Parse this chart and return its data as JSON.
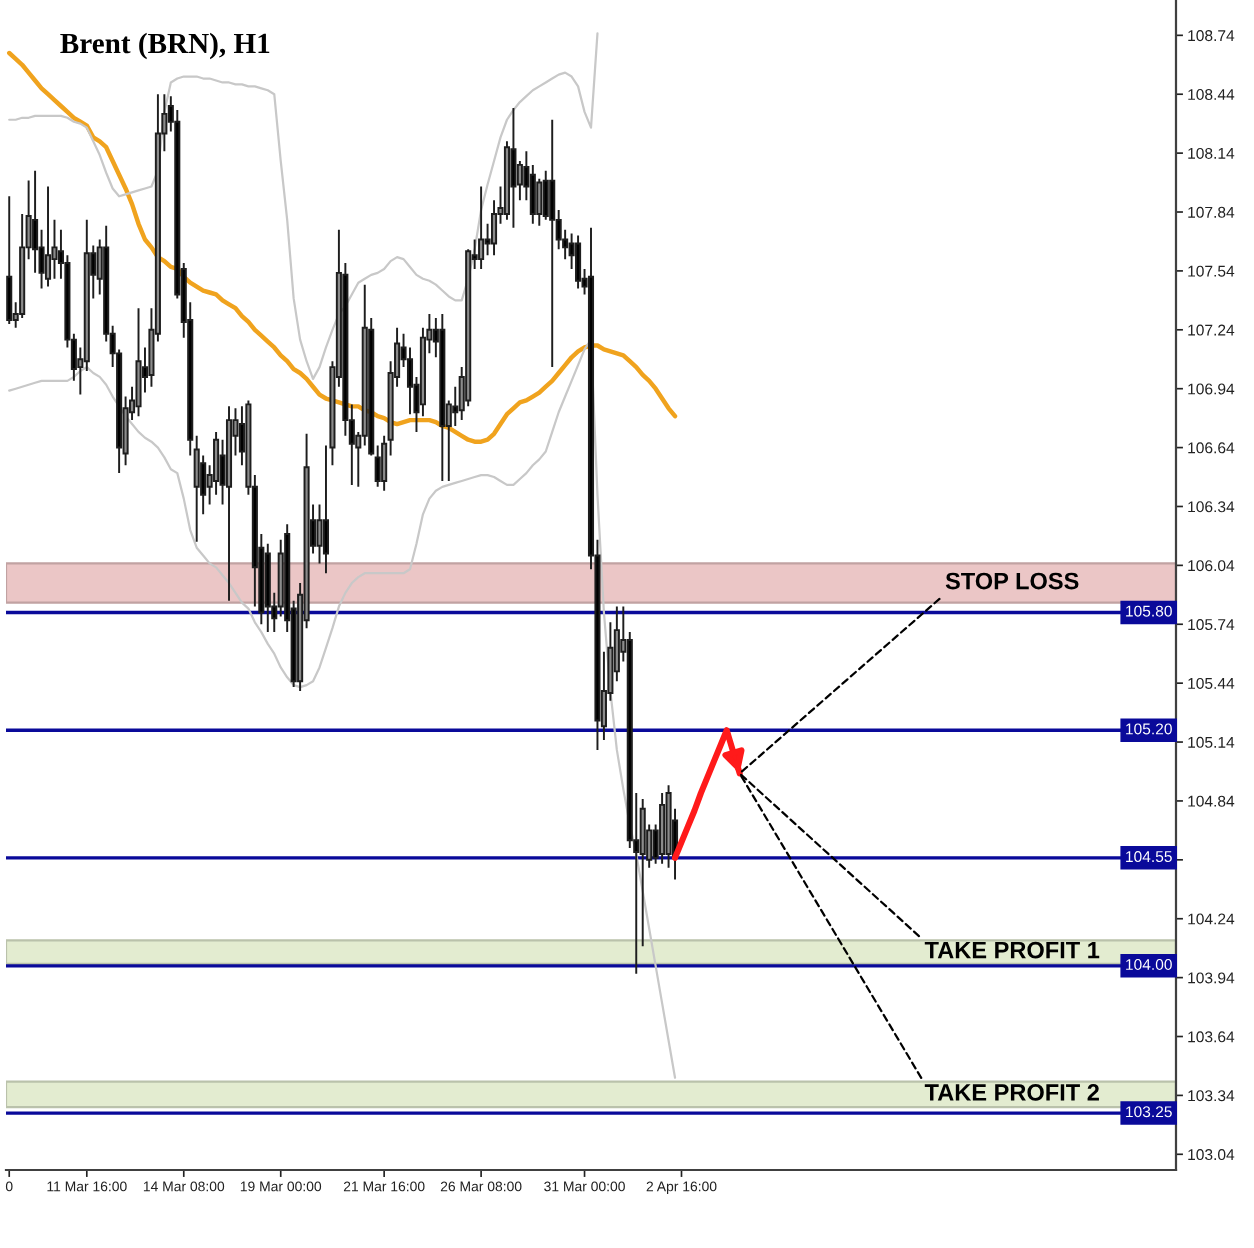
{
  "chart_data": {
    "type": "candlestick",
    "title": "Brent (BRN), H1",
    "categories": [
      "0",
      null,
      null,
      null,
      null,
      null,
      null,
      null,
      null,
      null,
      null,
      null,
      "11 Mar 16:00",
      null,
      null,
      null,
      null,
      null,
      null,
      null,
      null,
      null,
      null,
      null,
      null,
      null,
      null,
      "14 Mar 08:00",
      null,
      null,
      null,
      null,
      null,
      null,
      null,
      null,
      null,
      null,
      null,
      null,
      null,
      null,
      "19 Mar 00:00",
      null,
      null,
      null,
      null,
      null,
      null,
      null,
      null,
      null,
      null,
      null,
      null,
      null,
      null,
      null,
      "21 Mar 16:00",
      null,
      null,
      null,
      null,
      null,
      null,
      null,
      null,
      null,
      null,
      null,
      null,
      null,
      null,
      "26 Mar 08:00",
      null,
      null,
      null,
      null,
      null,
      null,
      null,
      null,
      null,
      null,
      null,
      null,
      null,
      null,
      null,
      "31 Mar 00:00",
      null,
      null,
      null,
      null,
      null,
      null,
      null,
      null,
      null,
      null,
      null,
      null,
      null,
      null,
      "2 Apr 16:00",
      null,
      null,
      null,
      null,
      null,
      null,
      null,
      null,
      null,
      null,
      null,
      null,
      null,
      null,
      null,
      null,
      null,
      null,
      null,
      null,
      null,
      null,
      null,
      null,
      null,
      null,
      null,
      null,
      null,
      null,
      null,
      null,
      null,
      null,
      null,
      null,
      null,
      null,
      null,
      null,
      null,
      null,
      null,
      null,
      null,
      null,
      null,
      null,
      null,
      null,
      null,
      null,
      null,
      null,
      null,
      null,
      null,
      null,
      null,
      null,
      null,
      null,
      null,
      null,
      null,
      null,
      null,
      null,
      null,
      null,
      null,
      null,
      null,
      null,
      null,
      null
    ],
    "ohlc": [
      [
        107.51,
        107.92,
        107.27,
        107.29
      ],
      [
        107.29,
        107.38,
        107.25,
        107.32
      ],
      [
        107.32,
        107.83,
        107.3,
        107.66
      ],
      [
        107.66,
        108.0,
        107.6,
        107.82
      ],
      [
        107.8,
        108.05,
        107.53,
        107.65
      ],
      [
        107.66,
        107.75,
        107.45,
        107.53
      ],
      [
        107.5,
        107.97,
        107.46,
        107.62
      ],
      [
        107.6,
        107.8,
        107.5,
        107.66
      ],
      [
        107.64,
        107.75,
        107.5,
        107.58
      ],
      [
        107.58,
        107.62,
        107.15,
        107.19
      ],
      [
        107.19,
        107.22,
        106.98,
        107.04
      ],
      [
        107.05,
        107.15,
        106.91,
        107.09
      ],
      [
        107.08,
        107.8,
        107.03,
        107.63
      ],
      [
        107.63,
        107.67,
        107.4,
        107.52
      ],
      [
        107.5,
        107.7,
        107.42,
        107.66
      ],
      [
        107.66,
        107.77,
        107.18,
        107.22
      ],
      [
        107.22,
        107.26,
        107.05,
        107.12
      ],
      [
        107.12,
        107.14,
        106.51,
        106.64
      ],
      [
        106.61,
        106.9,
        106.55,
        106.84
      ],
      [
        106.82,
        106.95,
        106.78,
        106.88
      ],
      [
        106.85,
        107.35,
        106.8,
        107.08
      ],
      [
        107.05,
        107.15,
        106.92,
        107.0
      ],
      [
        107.01,
        107.35,
        106.95,
        107.24
      ],
      [
        107.22,
        108.44,
        107.18,
        108.24
      ],
      [
        108.24,
        108.44,
        108.15,
        108.34
      ],
      [
        108.38,
        108.43,
        108.25,
        108.3
      ],
      [
        108.3,
        108.36,
        107.4,
        107.42
      ],
      [
        107.55,
        107.58,
        107.2,
        107.28
      ],
      [
        107.29,
        107.38,
        106.6,
        106.68
      ],
      [
        106.44,
        106.7,
        106.16,
        106.63
      ],
      [
        106.56,
        106.6,
        106.3,
        106.4
      ],
      [
        106.44,
        106.55,
        106.35,
        106.5
      ],
      [
        106.47,
        106.72,
        106.4,
        106.68
      ],
      [
        106.6,
        106.68,
        106.35,
        106.45
      ],
      [
        106.44,
        106.85,
        105.86,
        106.78
      ],
      [
        106.7,
        106.84,
        106.6,
        106.78
      ],
      [
        106.76,
        106.85,
        106.55,
        106.62
      ],
      [
        106.44,
        106.88,
        106.4,
        106.86
      ],
      [
        106.44,
        106.5,
        105.83,
        106.03
      ],
      [
        106.13,
        106.2,
        105.74,
        105.8
      ],
      [
        106.1,
        106.15,
        105.7,
        105.83
      ],
      [
        105.83,
        105.9,
        105.7,
        105.77
      ],
      [
        105.83,
        106.17,
        105.78,
        106.1
      ],
      [
        106.2,
        106.25,
        105.7,
        105.76
      ],
      [
        105.82,
        105.86,
        105.42,
        105.45
      ],
      [
        105.45,
        105.95,
        105.4,
        105.89
      ],
      [
        105.76,
        106.71,
        105.72,
        106.54
      ],
      [
        106.27,
        106.35,
        106.1,
        106.14
      ],
      [
        106.14,
        106.35,
        106.05,
        106.27
      ],
      [
        106.27,
        106.65,
        106.0,
        106.1
      ],
      [
        106.64,
        107.08,
        106.55,
        107.05
      ],
      [
        107.0,
        107.75,
        106.95,
        107.53
      ],
      [
        107.52,
        107.58,
        106.7,
        106.78
      ],
      [
        106.78,
        106.86,
        106.45,
        106.66
      ],
      [
        106.64,
        106.72,
        106.44,
        106.7
      ],
      [
        106.7,
        107.47,
        106.65,
        107.25
      ],
      [
        107.24,
        107.3,
        106.6,
        106.61
      ],
      [
        106.59,
        106.65,
        106.44,
        106.47
      ],
      [
        106.47,
        106.7,
        106.42,
        106.66
      ],
      [
        106.68,
        107.08,
        106.6,
        107.02
      ],
      [
        107.0,
        107.25,
        106.95,
        107.17
      ],
      [
        107.15,
        107.22,
        107.05,
        107.09
      ],
      [
        107.09,
        107.15,
        106.81,
        106.95
      ],
      [
        106.96,
        107.0,
        106.72,
        106.82
      ],
      [
        106.86,
        107.25,
        106.8,
        107.2
      ],
      [
        107.19,
        107.32,
        107.12,
        107.24
      ],
      [
        107.24,
        107.3,
        107.1,
        107.18
      ],
      [
        107.24,
        107.32,
        106.47,
        106.75
      ],
      [
        106.75,
        106.88,
        106.47,
        106.86
      ],
      [
        106.85,
        106.95,
        106.75,
        106.82
      ],
      [
        106.83,
        107.05,
        106.78,
        107.0
      ],
      [
        106.88,
        107.65,
        106.85,
        107.64
      ],
      [
        107.62,
        107.7,
        107.55,
        107.6
      ],
      [
        107.6,
        107.97,
        107.55,
        107.7
      ],
      [
        107.7,
        107.78,
        107.62,
        107.68
      ],
      [
        107.68,
        107.9,
        107.62,
        107.83
      ],
      [
        107.83,
        107.97,
        107.78,
        107.86
      ],
      [
        107.83,
        108.2,
        107.8,
        108.17
      ],
      [
        108.16,
        108.37,
        107.76,
        107.97
      ],
      [
        107.98,
        108.1,
        107.9,
        108.08
      ],
      [
        108.07,
        108.15,
        107.9,
        107.97
      ],
      [
        108.03,
        108.08,
        107.78,
        107.83
      ],
      [
        107.83,
        108.01,
        107.77,
        107.99
      ],
      [
        108.0,
        108.05,
        107.8,
        107.82
      ],
      [
        108.0,
        108.31,
        107.05,
        107.8
      ],
      [
        107.8,
        107.85,
        107.65,
        107.7
      ],
      [
        107.7,
        107.75,
        107.6,
        107.66
      ],
      [
        107.68,
        107.73,
        107.55,
        107.62
      ],
      [
        107.68,
        107.72,
        107.45,
        107.49
      ],
      [
        107.5,
        107.55,
        107.42,
        107.46
      ],
      [
        107.51,
        107.76,
        106.02,
        106.09
      ],
      [
        106.09,
        106.17,
        105.1,
        105.25
      ],
      [
        105.22,
        105.6,
        105.15,
        105.4
      ],
      [
        105.39,
        105.75,
        105.35,
        105.62
      ],
      [
        105.5,
        105.83,
        105.45,
        105.71
      ],
      [
        105.6,
        105.83,
        105.55,
        105.66
      ],
      [
        105.66,
        105.7,
        104.6,
        104.64
      ],
      [
        104.64,
        104.88,
        103.96,
        104.58
      ],
      [
        104.57,
        104.85,
        104.1,
        104.8
      ],
      [
        104.54,
        104.72,
        104.5,
        104.69
      ],
      [
        104.69,
        104.72,
        104.52,
        104.55
      ],
      [
        104.57,
        104.88,
        104.52,
        104.82
      ],
      [
        104.57,
        104.92,
        104.5,
        104.88
      ],
      [
        104.74,
        104.8,
        104.44,
        104.55
      ],
      null,
      null,
      null,
      null,
      null,
      null,
      null,
      null,
      null,
      null,
      null,
      null,
      null,
      null,
      null,
      null,
      null,
      null,
      null,
      null,
      null,
      null,
      null,
      null,
      null,
      null,
      null,
      null,
      null,
      null,
      null,
      null,
      null,
      null,
      null,
      null,
      null,
      null,
      null,
      null,
      null,
      null,
      null,
      null,
      null,
      null,
      null,
      null,
      null,
      null,
      null,
      null,
      null,
      null,
      null,
      null,
      null,
      null,
      null,
      null,
      null,
      null,
      null,
      null,
      null,
      null,
      null,
      null,
      null,
      null,
      null,
      null,
      null,
      null,
      null,
      null,
      null
    ],
    "colors": [
      "#000000",
      "#8c8c8c",
      "#8c8c8c",
      "#8c8c8c",
      "#000000",
      "#000000",
      "#8c8c8c",
      "#8c8c8c",
      "#000000",
      "#000000",
      "#000000",
      "#8c8c8c",
      "#8c8c8c",
      "#000000",
      "#8c8c8c",
      "#000000",
      "#000000",
      "#000000",
      "#8c8c8c",
      "#8c8c8c",
      "#8c8c8c",
      "#000000",
      "#8c8c8c",
      "#8c8c8c",
      "#8c8c8c",
      "#000000",
      "#000000",
      "#000000",
      "#000000",
      "#8c8c8c",
      "#000000",
      "#8c8c8c",
      "#8c8c8c",
      "#000000",
      "#8c8c8c",
      "#8c8c8c",
      "#000000",
      "#8c8c8c",
      "#000000",
      "#000000",
      "#000000",
      "#000000",
      "#8c8c8c",
      "#000000",
      "#000000",
      "#8c8c8c",
      "#8c8c8c",
      "#000000",
      "#8c8c8c",
      "#000000",
      "#8c8c8c",
      "#8c8c8c",
      "#000000",
      "#000000",
      "#8c8c8c",
      "#8c8c8c",
      "#000000",
      "#000000",
      "#8c8c8c",
      "#8c8c8c",
      "#8c8c8c",
      "#000000",
      "#000000",
      "#000000",
      "#8c8c8c",
      "#8c8c8c",
      "#000000",
      "#000000",
      "#8c8c8c",
      "#000000",
      "#8c8c8c",
      "#8c8c8c",
      "#000000",
      "#8c8c8c",
      "#000000",
      "#8c8c8c",
      "#8c8c8c",
      "#8c8c8c",
      "#000000",
      "#8c8c8c",
      "#000000",
      "#000000",
      "#8c8c8c",
      "#000000",
      "#000000",
      "#000000",
      "#000000",
      "#000000",
      "#000000",
      "#000000",
      "#000000",
      "#000000",
      "#8c8c8c",
      "#8c8c8c",
      "#8c8c8c",
      "#8c8c8c",
      "#000000",
      "#000000",
      "#8c8c8c",
      "#8c8c8c",
      "#000000",
      "#8c8c8c",
      "#8c8c8c",
      "#000000",
      null,
      null,
      null,
      null,
      null,
      null,
      null,
      null,
      null,
      null,
      null,
      null,
      null,
      null,
      null,
      null,
      null,
      null,
      null,
      null,
      null,
      null,
      null,
      null,
      null,
      null,
      null,
      null,
      null,
      null,
      null,
      null,
      null,
      null,
      null,
      null,
      null,
      null,
      null,
      null,
      null,
      null,
      null,
      null,
      null,
      null,
      null,
      null,
      null,
      null,
      null,
      null,
      null,
      null,
      null,
      null,
      null,
      null,
      null,
      null,
      null,
      null,
      null,
      null,
      null,
      null,
      null,
      null,
      null,
      null,
      null,
      null,
      null,
      null,
      null,
      null,
      null
    ],
    "series": [
      {
        "type": "line",
        "color": "#f0a31e",
        "values": [
          108.65,
          108.62,
          108.59,
          108.55,
          108.51,
          108.47,
          108.44,
          108.41,
          108.38,
          108.35,
          108.32,
          108.3,
          108.28,
          108.22,
          108.2,
          108.17,
          108.1,
          108.03,
          107.96,
          107.88,
          107.78,
          107.7,
          107.66,
          107.61,
          107.59,
          107.56,
          107.55,
          107.51,
          107.48,
          107.46,
          107.44,
          107.43,
          107.42,
          107.39,
          107.37,
          107.35,
          107.31,
          107.28,
          107.24,
          107.21,
          107.18,
          107.15,
          107.11,
          107.08,
          107.04,
          107.02,
          106.99,
          106.95,
          106.91,
          106.89,
          106.88,
          106.87,
          106.86,
          106.85,
          106.85,
          106.83,
          106.82,
          106.8,
          106.79,
          106.77,
          106.76,
          106.77,
          106.78,
          106.78,
          106.78,
          106.78,
          106.77,
          106.75,
          106.74,
          106.72,
          106.7,
          106.68,
          106.67,
          106.67,
          106.68,
          106.71,
          106.76,
          106.81,
          106.84,
          106.87,
          106.88,
          106.9,
          106.92,
          106.95,
          106.98,
          107.02,
          107.06,
          107.1,
          107.13,
          107.15,
          107.16,
          107.16,
          107.14,
          107.13,
          107.12,
          107.11,
          107.08,
          107.05,
          107.01,
          106.98,
          106.94,
          106.89,
          106.84,
          106.8,
          null,
          null,
          null,
          null,
          null,
          null,
          null,
          null,
          null,
          null,
          null,
          null,
          null,
          null,
          null,
          null,
          null,
          null,
          null,
          null,
          null,
          null,
          null,
          null,
          null,
          null,
          null,
          null,
          null,
          null,
          null,
          null,
          null,
          null,
          null,
          null,
          null,
          null,
          null,
          null,
          null,
          null,
          null,
          null,
          null,
          null,
          null,
          null,
          null,
          null,
          null,
          null,
          null,
          null,
          null,
          null,
          null,
          null,
          null,
          null,
          null,
          null,
          null,
          null,
          null,
          null,
          null,
          null,
          null,
          null,
          null,
          null,
          null,
          null,
          null,
          null,
          null
        ]
      },
      {
        "type": "line",
        "color": "#c8c8c8",
        "values": [
          108.31,
          108.31,
          108.32,
          108.32,
          108.33,
          108.33,
          108.33,
          108.33,
          108.33,
          108.32,
          108.3,
          108.29,
          108.27,
          108.2,
          108.13,
          108.04,
          107.96,
          107.92,
          107.93,
          107.94,
          107.95,
          107.96,
          107.97,
          108.05,
          108.35,
          108.5,
          108.52,
          108.53,
          108.53,
          108.53,
          108.52,
          108.52,
          108.51,
          108.5,
          108.5,
          108.49,
          108.49,
          108.48,
          108.48,
          108.47,
          108.46,
          108.44,
          108.1,
          107.8,
          107.4,
          107.19,
          107.08,
          106.99,
          107.05,
          107.15,
          107.24,
          107.32,
          107.36,
          107.42,
          107.48,
          107.5,
          107.52,
          107.53,
          107.55,
          107.59,
          107.61,
          107.6,
          107.56,
          107.52,
          107.5,
          107.49,
          107.47,
          107.44,
          107.41,
          107.39,
          107.39,
          107.5,
          107.65,
          107.85,
          107.98,
          108.1,
          108.22,
          108.31,
          108.36,
          108.4,
          108.43,
          108.46,
          108.48,
          108.5,
          108.52,
          108.54,
          108.55,
          108.53,
          108.48,
          108.35,
          108.27,
          108.75,
          null,
          null,
          null,
          null,
          null,
          null,
          null,
          null,
          null,
          null,
          null,
          null,
          null,
          null,
          null,
          null,
          null,
          null,
          null,
          null,
          null,
          null,
          null,
          null,
          null,
          null,
          null,
          null,
          null,
          null,
          null,
          null,
          null,
          null,
          null,
          null,
          null,
          null,
          null,
          null,
          null,
          null,
          null,
          null,
          null,
          null,
          null,
          null,
          null,
          null,
          null,
          null,
          null,
          null,
          null,
          null,
          null,
          null,
          null,
          null,
          null,
          null,
          null,
          null,
          null,
          null,
          null,
          null,
          null,
          null,
          null,
          null,
          null,
          null,
          null,
          null,
          null,
          null,
          null,
          null,
          null,
          null,
          null,
          null,
          null,
          null,
          null,
          null,
          null
        ]
      },
      {
        "type": "line",
        "color": "#c8c8c8",
        "values": [
          106.93,
          106.94,
          106.95,
          106.96,
          106.97,
          106.98,
          106.98,
          106.98,
          106.98,
          106.98,
          107.0,
          107.03,
          107.05,
          107.02,
          107.0,
          106.96,
          106.9,
          106.85,
          106.8,
          106.76,
          106.72,
          106.69,
          106.67,
          106.64,
          106.59,
          106.53,
          106.51,
          106.38,
          106.22,
          106.13,
          106.09,
          106.05,
          106.03,
          105.99,
          105.95,
          105.9,
          105.85,
          105.82,
          105.75,
          105.7,
          105.64,
          105.59,
          105.52,
          105.47,
          105.43,
          105.42,
          105.43,
          105.45,
          105.52,
          105.62,
          105.72,
          105.83,
          105.9,
          105.95,
          105.98,
          106.0,
          106.0,
          106.0,
          106.0,
          106.0,
          106.0,
          106.0,
          106.02,
          106.15,
          106.3,
          106.38,
          106.42,
          106.44,
          106.45,
          106.46,
          106.47,
          106.48,
          106.49,
          106.5,
          106.5,
          106.49,
          106.47,
          106.45,
          106.45,
          106.48,
          106.51,
          106.55,
          106.58,
          106.62,
          106.72,
          106.82,
          106.9,
          106.98,
          107.06,
          107.14,
          107.19,
          106.4,
          105.8,
          105.4,
          105.1,
          104.9,
          104.72,
          104.57,
          104.38,
          104.19,
          104.0,
          103.81,
          103.62,
          103.43,
          null,
          null,
          null,
          null,
          null,
          null,
          null,
          null,
          null,
          null,
          null,
          null,
          null,
          null,
          null,
          null,
          null,
          null,
          null,
          null,
          null,
          null,
          null,
          null,
          null,
          null,
          null,
          null,
          null,
          null,
          null,
          null,
          null,
          null,
          null,
          null,
          null,
          null,
          null,
          null,
          null,
          null,
          null,
          null,
          null,
          null,
          null,
          null,
          null,
          null,
          null,
          null,
          null,
          null,
          null,
          null,
          null,
          null,
          null,
          null,
          null,
          null,
          null,
          null,
          null,
          null,
          null,
          null,
          null,
          null,
          null,
          null,
          null,
          null,
          null,
          null,
          null
        ]
      },
      {
        "type": "line",
        "color": "#ff1a1a",
        "values": [
          null,
          null,
          null,
          null,
          null,
          null,
          null,
          null,
          null,
          null,
          null,
          null,
          null,
          null,
          null,
          null,
          null,
          null,
          null,
          null,
          null,
          null,
          null,
          null,
          null,
          null,
          null,
          null,
          null,
          null,
          null,
          null,
          null,
          null,
          null,
          null,
          null,
          null,
          null,
          null,
          null,
          null,
          null,
          null,
          null,
          null,
          null,
          null,
          null,
          null,
          null,
          null,
          null,
          null,
          null,
          null,
          null,
          null,
          null,
          null,
          null,
          null,
          null,
          null,
          null,
          null,
          null,
          null,
          null,
          null,
          null,
          null,
          null,
          null,
          null,
          null,
          null,
          null,
          null,
          null,
          null,
          null,
          null,
          null,
          null,
          null,
          null,
          null,
          null,
          null,
          null,
          null,
          null,
          null,
          null,
          null,
          null,
          null,
          null,
          null,
          null,
          null,
          null,
          104.55,
          104.63,
          104.71,
          104.79,
          104.88,
          104.96,
          105.04,
          105.12,
          105.2,
          105.09,
          104.98,
          null,
          null,
          null,
          null,
          null,
          null,
          null,
          null,
          null,
          null,
          null,
          null,
          null,
          null,
          null,
          null,
          null,
          null,
          null,
          null,
          null,
          null,
          null,
          null,
          null,
          null,
          null,
          null,
          null,
          null,
          null,
          null,
          null,
          null,
          null,
          null,
          null,
          null,
          null,
          null,
          null,
          null,
          null,
          null,
          null,
          null,
          null,
          null,
          null,
          null,
          null,
          null,
          null,
          null,
          null,
          null,
          null,
          null,
          null,
          null,
          null,
          null,
          null,
          null,
          null,
          null,
          null
        ]
      }
    ],
    "ylim": [
      102.96,
      108.92
    ],
    "yticks": [
      103.04,
      103.34,
      103.64,
      103.94,
      104.24,
      {
        "value": 104.54,
        "label": null
      },
      104.84,
      105.14,
      105.44,
      105.74,
      106.04,
      106.34,
      106.64,
      106.94,
      107.24,
      107.54,
      107.84,
      108.14,
      108.44,
      108.74
    ],
    "ref_lines": [
      {
        "axis": "y",
        "value": 105.8,
        "label": "105.80",
        "color": "#0a0a9a"
      },
      {
        "axis": "y",
        "value": 105.2,
        "label": "105.20",
        "color": "#0a0a9a"
      },
      {
        "axis": "y",
        "value": 104.55,
        "label": "104.55",
        "color": "#0a0a9a"
      },
      {
        "axis": "y",
        "value": 104.0,
        "label": "104.00",
        "color": "#0a0a9a"
      },
      {
        "axis": "y",
        "value": 103.25,
        "label": "103.25",
        "color": "#0a0a9a"
      }
    ],
    "bands": [
      {
        "axis": "y",
        "from": 105.85,
        "to": 106.05,
        "label": "STOP LOSS",
        "color": "#ebc6c6"
      },
      {
        "axis": "y",
        "from": 104.01,
        "to": 104.13,
        "label": "TAKE PROFIT 1",
        "color": "#e3ecd0"
      },
      {
        "axis": "y",
        "from": 103.28,
        "to": 103.41,
        "label": "TAKE PROFIT 2",
        "color": "#e3ecd0"
      }
    ]
  }
}
